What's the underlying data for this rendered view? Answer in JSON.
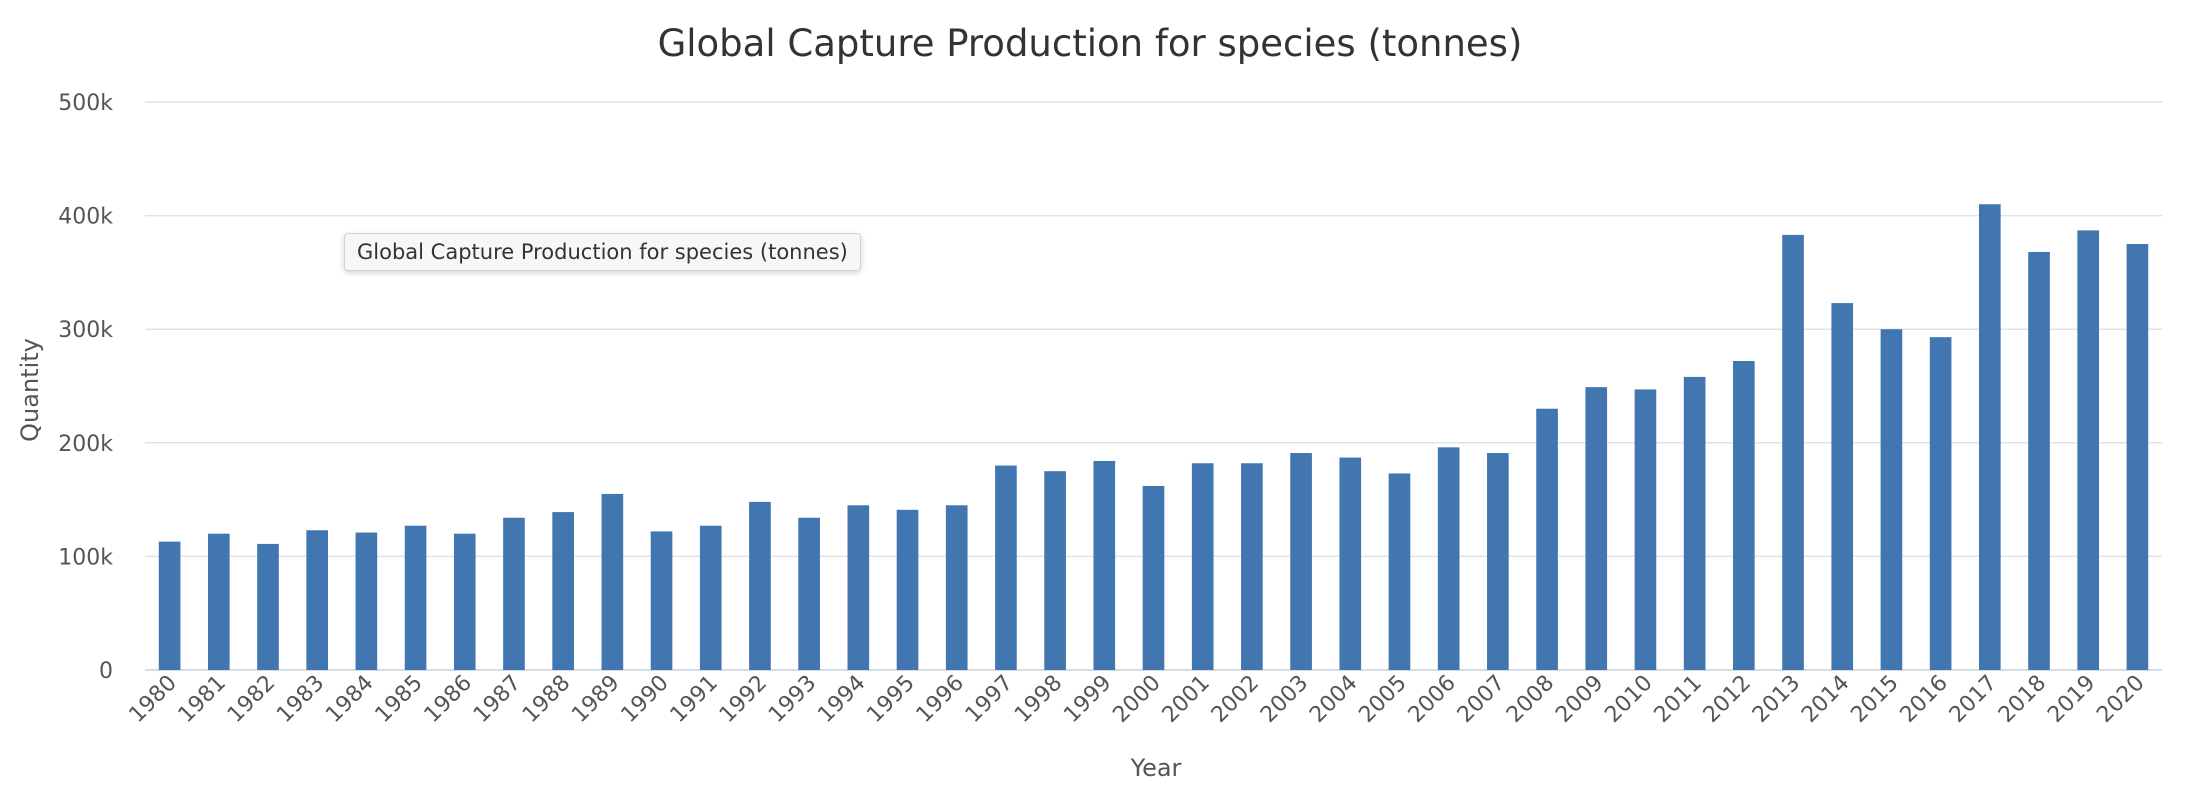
{
  "tooltip": {
    "text": "Global Capture Production for species (tonnes)"
  },
  "colors": {
    "bar": "#4276b0",
    "grid": "#e3e3e3",
    "text": "#555555"
  },
  "chart_data": {
    "type": "bar",
    "title": "Global Capture Production for species (tonnes)",
    "xlabel": "Year",
    "ylabel": "Quantity",
    "ylim": [
      0,
      500000
    ],
    "yticks": [
      0,
      100000,
      200000,
      300000,
      400000,
      500000
    ],
    "ytick_labels": [
      "0",
      "100k",
      "200k",
      "300k",
      "400k",
      "500k"
    ],
    "grid": true,
    "legend": "none",
    "categories": [
      "1980",
      "1981",
      "1982",
      "1983",
      "1984",
      "1985",
      "1986",
      "1987",
      "1988",
      "1989",
      "1990",
      "1991",
      "1992",
      "1993",
      "1994",
      "1995",
      "1996",
      "1997",
      "1998",
      "1999",
      "2000",
      "2001",
      "2002",
      "2003",
      "2004",
      "2005",
      "2006",
      "2007",
      "2008",
      "2009",
      "2010",
      "2011",
      "2012",
      "2013",
      "2014",
      "2015",
      "2016",
      "2017",
      "2018",
      "2019",
      "2020"
    ],
    "values": [
      113000,
      120000,
      111000,
      123000,
      121000,
      127000,
      120000,
      134000,
      139000,
      155000,
      122000,
      127000,
      148000,
      134000,
      145000,
      141000,
      145000,
      180000,
      175000,
      184000,
      162000,
      182000,
      182000,
      191000,
      187000,
      173000,
      196000,
      191000,
      230000,
      249000,
      247000,
      258000,
      272000,
      383000,
      323000,
      300000,
      293000,
      410000,
      368000,
      387000,
      375000
    ]
  }
}
